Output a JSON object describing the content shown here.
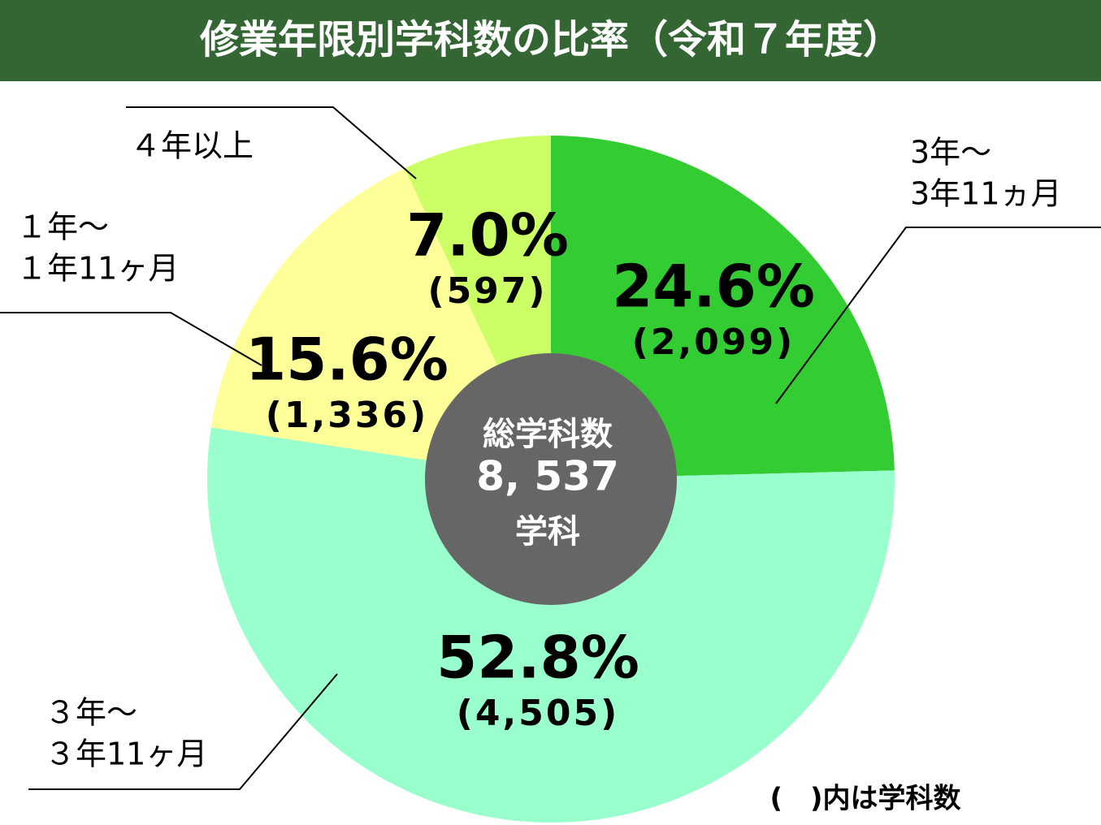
{
  "chart_data": {
    "type": "pie",
    "title": "修業年限別学科数の比率（令和７年度）",
    "categories": [
      [
        "3年～",
        "3年11ヵ月"
      ],
      [
        "３年～",
        "３年11ヶ月"
      ],
      [
        "１年～",
        "１年11ヶ月"
      ],
      [
        "４年以上"
      ]
    ],
    "values": [
      24.6,
      52.8,
      15.6,
      7.0
    ],
    "value_labels": [
      "24.6%",
      "52.8%",
      "15.6%",
      "7.0%"
    ],
    "count_labels": [
      "(2,099)",
      "(4,505)",
      "(1,336)",
      "(597)"
    ],
    "colors": [
      "#33cc33",
      "#99ffcc",
      "#ffff99",
      "#ccff66"
    ],
    "center_text": [
      "総学科数",
      "8, 537",
      "学科"
    ],
    "note": "(　)内は学科数"
  }
}
